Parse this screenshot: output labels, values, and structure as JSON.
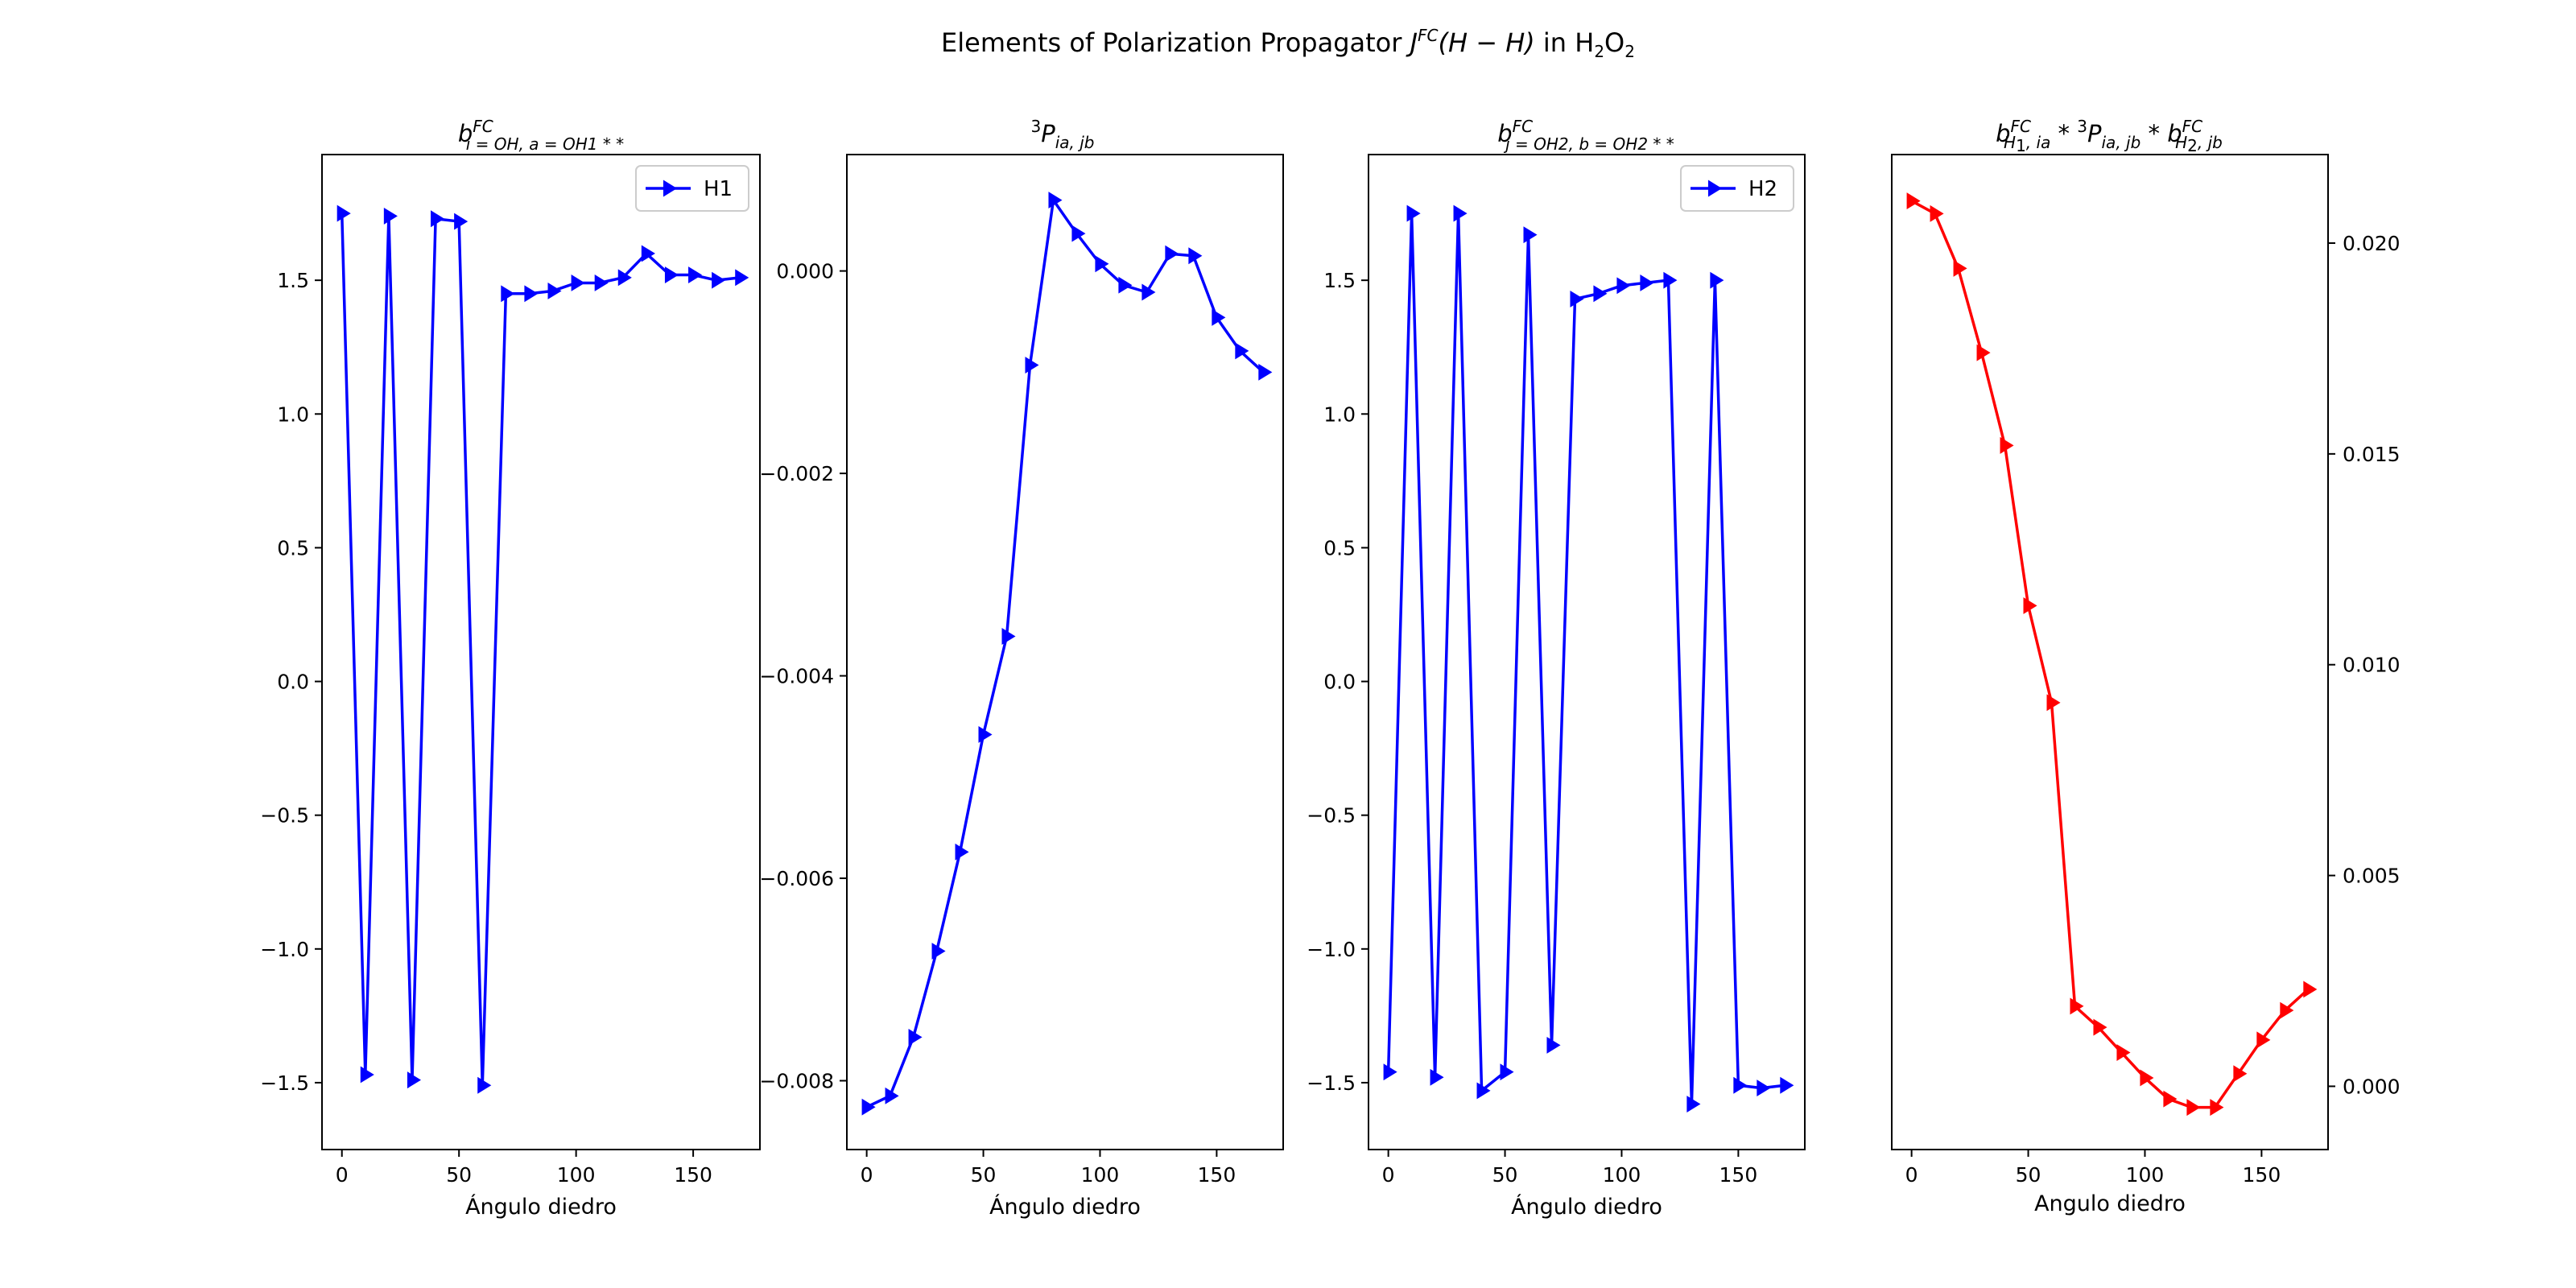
{
  "figure": {
    "suptitle_pre": "Elements of Polarization Propagator ",
    "suptitle_J": "J",
    "suptitle_FC": "FC",
    "suptitle_HH": "(H − H)",
    "suptitle_in": " in H",
    "suptitle_2a": "2",
    "suptitle_O": "O",
    "suptitle_2b": "2"
  },
  "panel_titles": {
    "p1_b": "b",
    "p1_sup": "FC",
    "p1_sub": "i = OH, a = OH1 * *",
    "p2_pre": "3",
    "p2_P": "P",
    "p2_sub": "ia, jb",
    "p3_b": "b",
    "p3_sup": "FC",
    "p3_sub": "j = OH2, b = OH2 * *",
    "p4_b1": "b",
    "p4_sup1": "FC",
    "p4_sub1": "H",
    "p4_sub1b": "1",
    "p4_sub1c": ", ia",
    "p4_star1": " * ",
    "p4_pre3": "3",
    "p4_P": "P",
    "p4_subP": "ia, jb",
    "p4_star2": " * ",
    "p4_b2": "b",
    "p4_sup2": "FC",
    "p4_sub2": "H",
    "p4_sub2b": "2",
    "p4_sub2c": ", jb"
  },
  "chart_data": [
    {
      "type": "line",
      "xlabel": "Ángulo diedro",
      "ylabel": "",
      "xlim": [
        -8.5,
        178.5
      ],
      "ylim": [
        -1.75,
        1.97
      ],
      "xticks": [
        0,
        50,
        100,
        150
      ],
      "xtick_labels": [
        "0",
        "50",
        "100",
        "150"
      ],
      "yticks": [
        -1.5,
        -1.0,
        -0.5,
        0.0,
        0.5,
        1.0,
        1.5
      ],
      "ytick_labels": [
        "−1.5",
        "−1.0",
        "−0.5",
        "0.0",
        "0.5",
        "1.0",
        "1.5"
      ],
      "y_axis_side": "left",
      "legend": "top-right",
      "series": [
        {
          "name": "H1",
          "color": "#0000ff",
          "marker": "triangle-right",
          "x": [
            0,
            10,
            20,
            30,
            40,
            50,
            60,
            70,
            80,
            90,
            100,
            110,
            120,
            130,
            140,
            150,
            160,
            170
          ],
          "y": [
            1.75,
            -1.47,
            1.74,
            -1.49,
            1.73,
            1.72,
            -1.51,
            1.45,
            1.45,
            1.46,
            1.49,
            1.49,
            1.51,
            1.6,
            1.52,
            1.52,
            1.5,
            1.51
          ]
        }
      ]
    },
    {
      "type": "line",
      "xlabel": "Ángulo diedro",
      "ylabel": "",
      "xlim": [
        -8.5,
        178.5
      ],
      "ylim": [
        -0.00868,
        0.00115
      ],
      "xticks": [
        0,
        50,
        100,
        150
      ],
      "xtick_labels": [
        "0",
        "50",
        "100",
        "150"
      ],
      "yticks": [
        -0.008,
        -0.006,
        -0.004,
        -0.002,
        0.0
      ],
      "ytick_labels": [
        "−0.008",
        "−0.006",
        "−0.004",
        "−0.002",
        "0.000"
      ],
      "y_axis_side": "left",
      "series": [
        {
          "color": "#0000ff",
          "marker": "triangle-right",
          "x": [
            0,
            10,
            20,
            30,
            40,
            50,
            60,
            70,
            80,
            90,
            100,
            110,
            120,
            130,
            140,
            150,
            160,
            170
          ],
          "y": [
            -0.00826,
            -0.00815,
            -0.00757,
            -0.00672,
            -0.00574,
            -0.00458,
            -0.00361,
            -0.00093,
            0.0007,
            0.00037,
            7e-05,
            -0.00014,
            -0.00021,
            0.00017,
            0.00015,
            -0.00046,
            -0.00079,
            -0.001
          ]
        }
      ]
    },
    {
      "type": "line",
      "xlabel": "Ángulo diedro",
      "ylabel": "",
      "xlim": [
        -8.5,
        178.5
      ],
      "ylim": [
        -1.75,
        1.97
      ],
      "xticks": [
        0,
        50,
        100,
        150
      ],
      "xtick_labels": [
        "0",
        "50",
        "100",
        "150"
      ],
      "yticks": [
        -1.5,
        -1.0,
        -0.5,
        0.0,
        0.5,
        1.0,
        1.5
      ],
      "ytick_labels": [
        "−1.5",
        "−1.0",
        "−0.5",
        "0.0",
        "0.5",
        "1.0",
        "1.5"
      ],
      "y_axis_side": "left",
      "legend": "top-right",
      "series": [
        {
          "name": "H2",
          "color": "#0000ff",
          "marker": "triangle-right",
          "x": [
            0,
            10,
            20,
            30,
            40,
            50,
            60,
            70,
            80,
            90,
            100,
            110,
            120,
            130,
            140,
            150,
            160,
            170
          ],
          "y": [
            -1.46,
            1.75,
            -1.48,
            1.75,
            -1.53,
            -1.46,
            1.67,
            -1.36,
            1.43,
            1.45,
            1.48,
            1.49,
            1.5,
            -1.58,
            1.5,
            -1.51,
            -1.52,
            -1.51
          ]
        }
      ]
    },
    {
      "type": "line",
      "xlabel": "Angulo diedro",
      "ylabel": "",
      "xlim": [
        -8.5,
        178.5
      ],
      "ylim": [
        -0.0015,
        0.0221
      ],
      "xticks": [
        0,
        50,
        100,
        150
      ],
      "xtick_labels": [
        "0",
        "50",
        "100",
        "150"
      ],
      "yticks": [
        0.0,
        0.005,
        0.01,
        0.015,
        0.02
      ],
      "ytick_labels": [
        "0.000",
        "0.005",
        "0.010",
        "0.015",
        "0.020"
      ],
      "y_axis_side": "right",
      "series": [
        {
          "color": "#ff0000",
          "marker": "triangle-right",
          "x": [
            0,
            10,
            20,
            30,
            40,
            50,
            60,
            70,
            80,
            90,
            100,
            110,
            120,
            130,
            140,
            150,
            160,
            170
          ],
          "y": [
            0.021,
            0.0207,
            0.0194,
            0.0174,
            0.0152,
            0.0114,
            0.0091,
            0.0019,
            0.0014,
            0.0008,
            0.0002,
            -0.0003,
            -0.0005,
            -0.0005,
            0.0003,
            0.0011,
            0.0018,
            0.0023
          ]
        }
      ]
    }
  ]
}
